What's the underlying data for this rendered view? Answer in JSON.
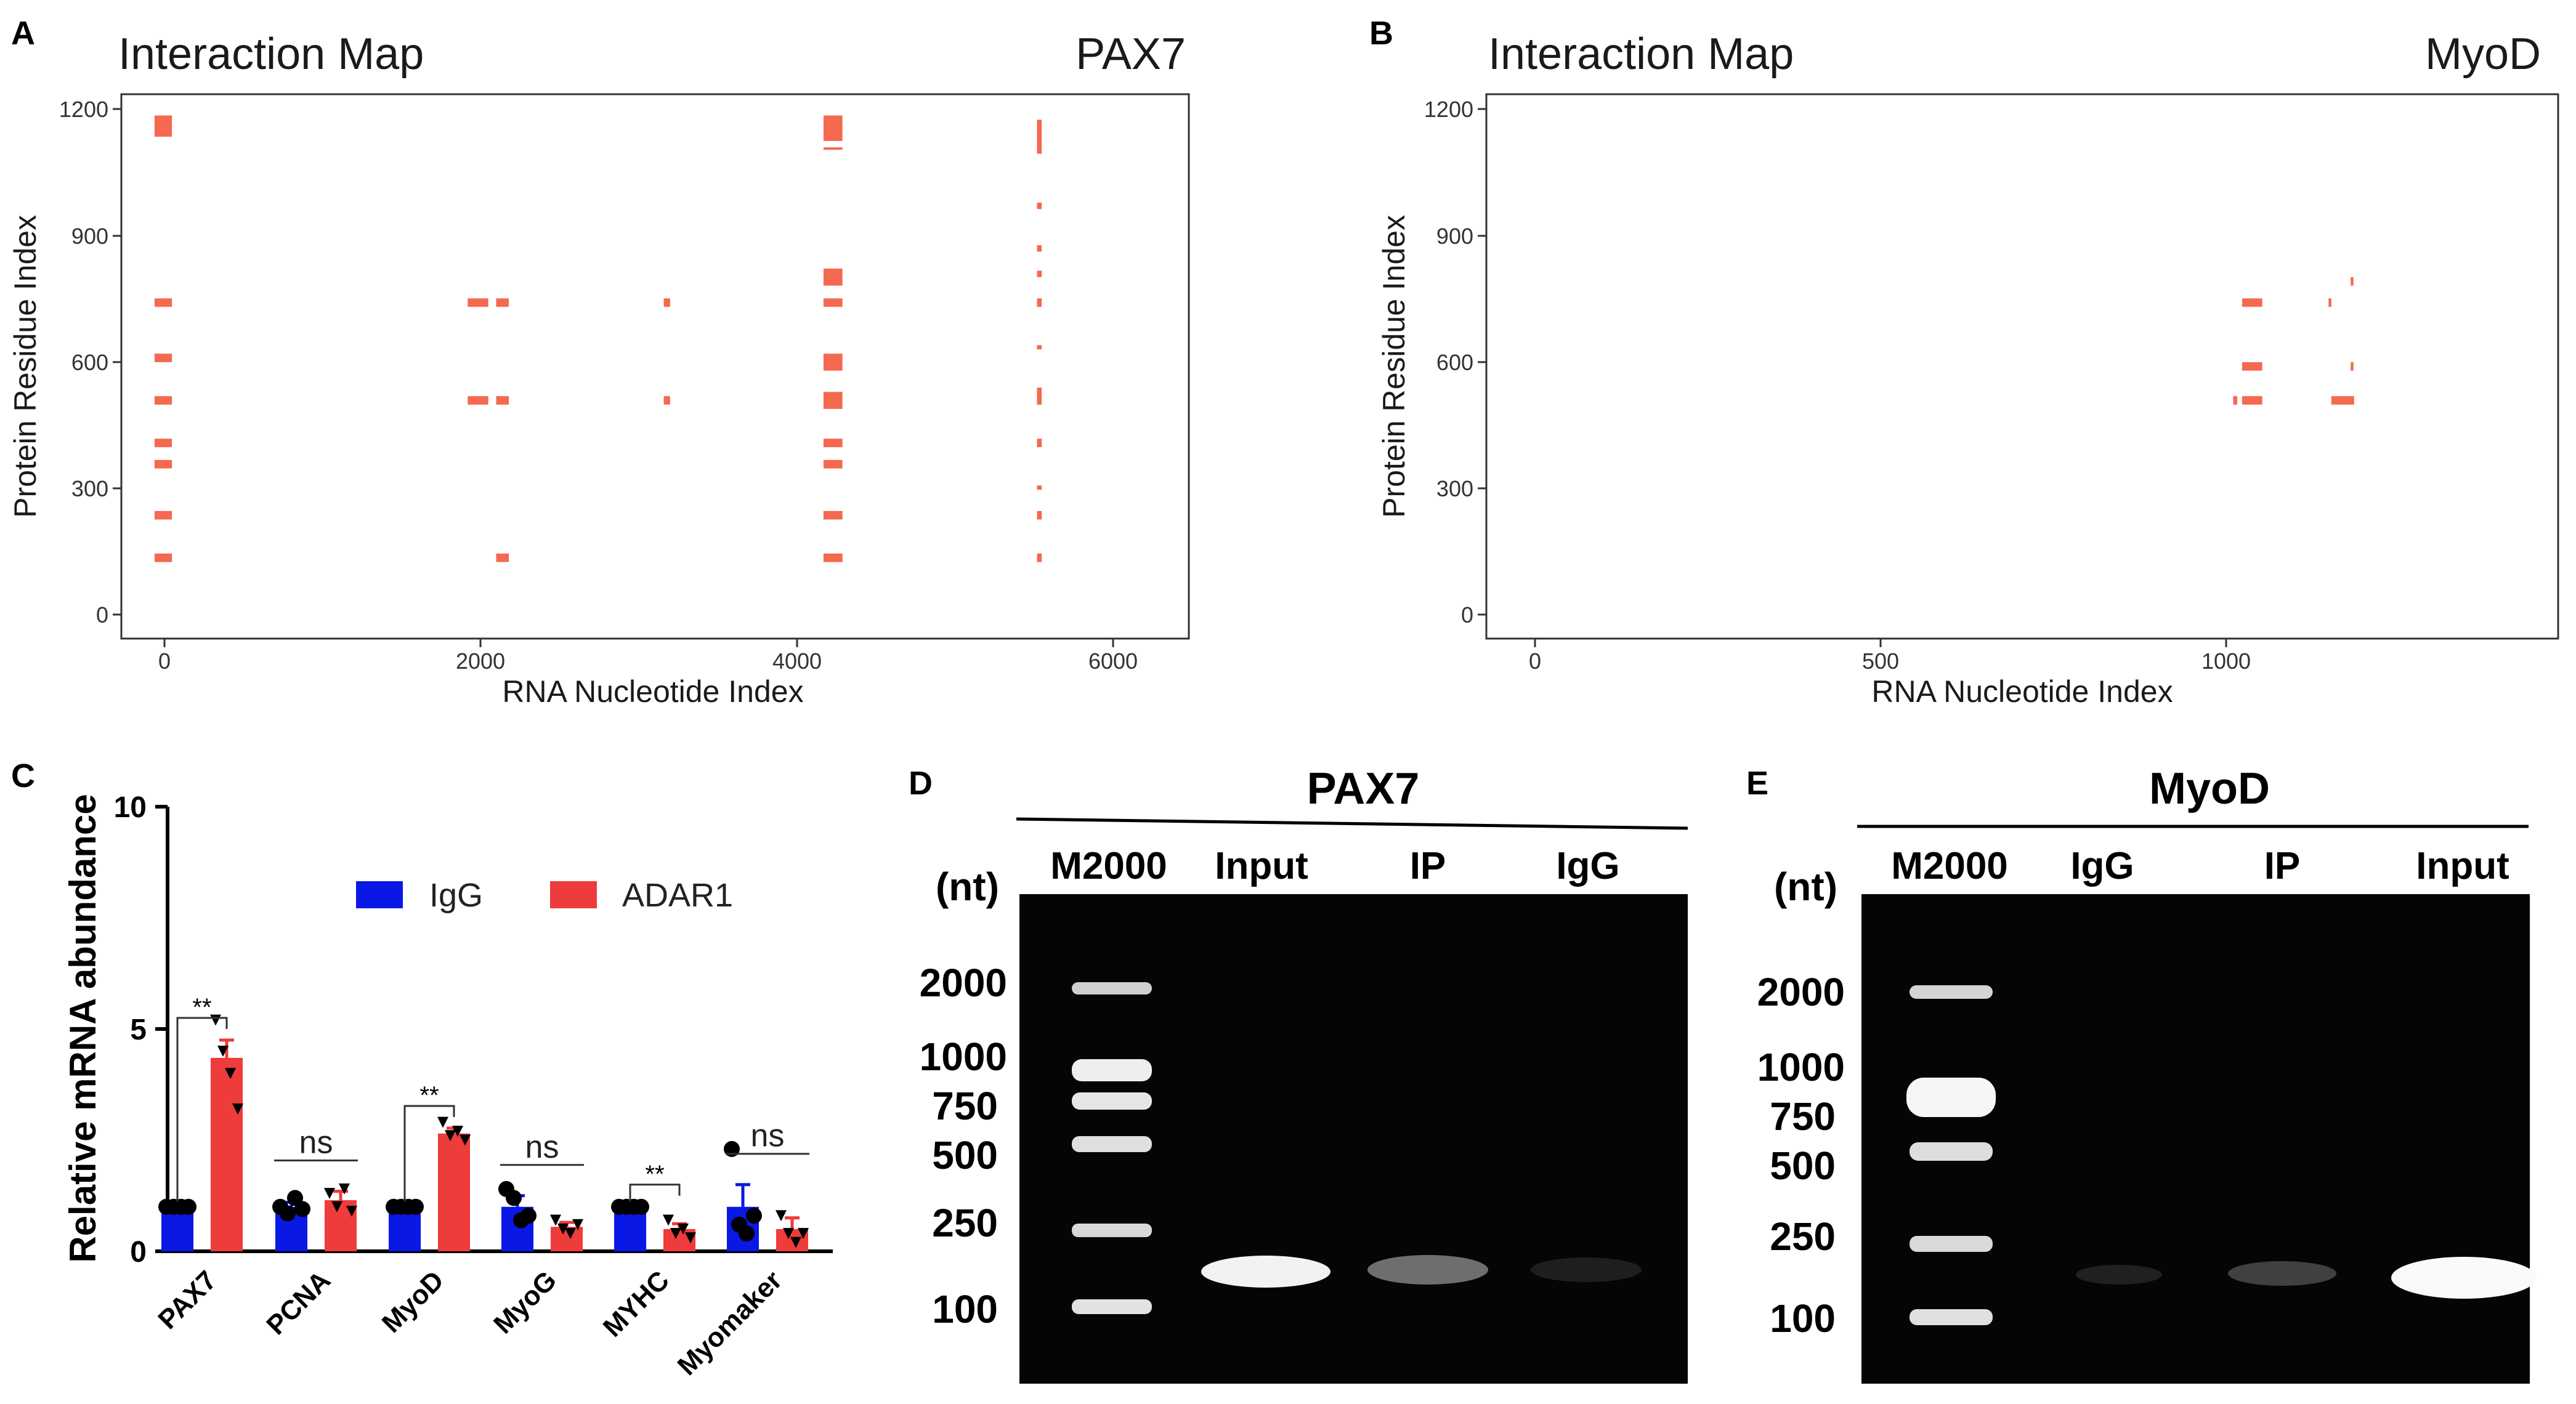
{
  "panels": {
    "A": {
      "letter": "A",
      "title": "Interaction Map",
      "protein": "PAX7",
      "xlabel": "RNA Nucleotide Index",
      "ylabel": "Protein Residue Index",
      "xticks": [
        "0",
        "2000",
        "4000",
        "6000"
      ],
      "yticks": [
        "0",
        "300",
        "600",
        "900",
        "1200"
      ]
    },
    "B": {
      "letter": "B",
      "title": "Interaction Map",
      "protein": "MyoD",
      "xlabel": "RNA Nucleotide Index",
      "ylabel": "Protein Residue Index",
      "xticks": [
        "0",
        "500",
        "1000"
      ],
      "yticks": [
        "0",
        "300",
        "600",
        "900",
        "1200"
      ]
    },
    "C": {
      "letter": "C",
      "ylabel": "Relative mRNA abundance",
      "yticks": [
        "0",
        "5",
        "10"
      ],
      "legend": [
        "IgG",
        "ADAR1"
      ]
    },
    "D": {
      "letter": "D",
      "title": "PAX7",
      "size_header": "(nt)",
      "lanes": [
        "M2000",
        "Input",
        "IP",
        "IgG"
      ],
      "sizes": [
        "2000",
        "1000",
        "750",
        "500",
        "250",
        "100"
      ]
    },
    "E": {
      "letter": "E",
      "title": "MyoD",
      "size_header": "(nt)",
      "lanes": [
        "M2000",
        "IgG",
        "IP",
        "Input"
      ],
      "sizes": [
        "2000",
        "1000",
        "750",
        "500",
        "250",
        "100"
      ]
    }
  },
  "colors": {
    "heat": "#f4694f",
    "igg": "#0a18e6",
    "adar1": "#ee3b3b",
    "gel_bg": "#050505",
    "band": "#f5f5f5"
  },
  "chart_data": [
    {
      "id": "A",
      "type": "heatmap",
      "title": "Interaction Map",
      "subtitle": "PAX7",
      "xlabel": "RNA Nucleotide Index",
      "ylabel": "Protein Residue Index",
      "xlim": [
        -200,
        6550
      ],
      "ylim": [
        -50,
        1230
      ],
      "x_columns": [
        {
          "x_range": [
            10,
            120
          ],
          "y_ranges": [
            [
              1130,
              1180
            ],
            [
              730,
              750
            ],
            [
              600,
              620
            ],
            [
              500,
              520
            ],
            [
              400,
              420
            ],
            [
              350,
              370
            ],
            [
              230,
              250
            ],
            [
              130,
              150
            ]
          ]
        },
        {
          "x_range": [
            1990,
            2120
          ],
          "y_ranges": [
            [
              730,
              750
            ],
            [
              500,
              520
            ]
          ]
        },
        {
          "x_range": [
            2170,
            2250
          ],
          "y_ranges": [
            [
              730,
              750
            ],
            [
              500,
              520
            ],
            [
              130,
              150
            ]
          ]
        },
        {
          "x_range": [
            3230,
            3270
          ],
          "y_ranges": [
            [
              730,
              750
            ],
            [
              500,
              520
            ]
          ]
        },
        {
          "x_range": [
            4240,
            4360
          ],
          "y_ranges": [
            [
              1120,
              1180
            ],
            [
              1100,
              1105
            ],
            [
              780,
              820
            ],
            [
              730,
              750
            ],
            [
              580,
              620
            ],
            [
              490,
              530
            ],
            [
              400,
              420
            ],
            [
              350,
              370
            ],
            [
              230,
              250
            ],
            [
              130,
              150
            ]
          ]
        },
        {
          "x_range": [
            5590,
            5620
          ],
          "y_ranges": [
            [
              1090,
              1170
            ],
            [
              960,
              975
            ],
            [
              860,
              875
            ],
            [
              800,
              815
            ],
            [
              730,
              750
            ],
            [
              630,
              640
            ],
            [
              500,
              540
            ],
            [
              400,
              420
            ],
            [
              300,
              310
            ],
            [
              230,
              250
            ],
            [
              130,
              150
            ]
          ]
        }
      ]
    },
    {
      "id": "B",
      "type": "heatmap",
      "title": "Interaction Map",
      "subtitle": "MyoD",
      "xlabel": "RNA Nucleotide Index",
      "ylabel": "Protein Residue Index",
      "xlim": [
        -50,
        1500
      ],
      "ylim": [
        -50,
        1230
      ],
      "x_columns": [
        {
          "x_range": [
            1030,
            1036
          ],
          "y_ranges": [
            [
              500,
              520
            ]
          ]
        },
        {
          "x_range": [
            1043,
            1072
          ],
          "y_ranges": [
            [
              730,
              750
            ],
            [
              580,
              600
            ],
            [
              500,
              520
            ]
          ]
        },
        {
          "x_range": [
            1168,
            1172
          ],
          "y_ranges": [
            [
              730,
              750
            ]
          ]
        },
        {
          "x_range": [
            1172,
            1205
          ],
          "y_ranges": [
            [
              500,
              520
            ]
          ]
        },
        {
          "x_range": [
            1200,
            1204
          ],
          "y_ranges": [
            [
              780,
              800
            ],
            [
              580,
              600
            ]
          ]
        }
      ]
    },
    {
      "id": "C",
      "type": "bar",
      "ylabel": "Relative mRNA abundance",
      "ylim": [
        0,
        10
      ],
      "categories": [
        "PAX7",
        "PCNA",
        "MyoD",
        "MyoG",
        "MYHC",
        "Myomaker"
      ],
      "series": [
        {
          "name": "IgG",
          "values": [
            1.0,
            1.0,
            1.0,
            1.0,
            1.0,
            1.0
          ],
          "errors": [
            0.0,
            0.1,
            0.0,
            0.25,
            0.0,
            0.5
          ],
          "points": [
            [
              1,
              1,
              1,
              1
            ],
            [
              1,
              0.85,
              1.2,
              0.95
            ],
            [
              1,
              1,
              1,
              1
            ],
            [
              1.4,
              1.2,
              0.7,
              0.8
            ],
            [
              1,
              1,
              1,
              1
            ],
            [
              2.3,
              0.6,
              0.4,
              0.8
            ]
          ]
        },
        {
          "name": "ADAR1",
          "values": [
            4.35,
            1.15,
            2.65,
            0.55,
            0.5,
            0.5
          ],
          "errors": [
            0.4,
            0.2,
            0.12,
            0.1,
            0.12,
            0.25
          ],
          "points": [
            [
              5.2,
              4.5,
              4.0,
              3.2
            ],
            [
              1.3,
              1.0,
              1.4,
              0.9
            ],
            [
              2.9,
              2.6,
              2.7,
              2.5
            ],
            [
              0.7,
              0.5,
              0.4,
              0.6
            ],
            [
              0.7,
              0.4,
              0.5,
              0.3
            ],
            [
              0.8,
              0.4,
              0.2,
              0.4
            ]
          ]
        }
      ],
      "significance": [
        "**",
        "ns",
        "**",
        "ns",
        "**",
        "ns"
      ],
      "legend": "top-right"
    }
  ]
}
